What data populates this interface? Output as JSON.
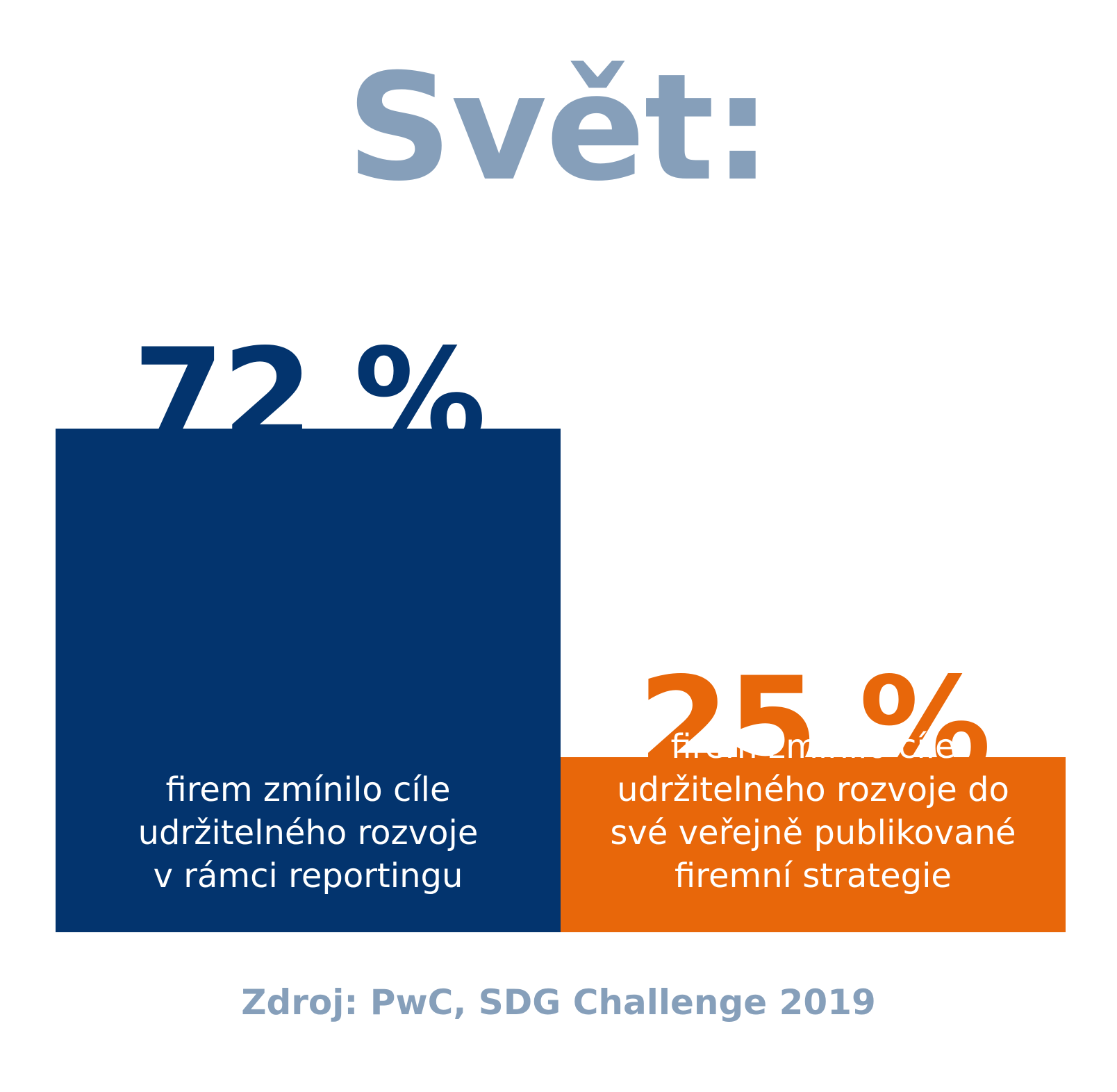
{
  "title": "Svět:",
  "source": "Zdroj: PwC, SDG Challenge 2019",
  "colors": {
    "title": "#869fba",
    "source": "#869fba",
    "navy": "#03346e",
    "orange": "#e8670a",
    "background": "#ffffff"
  },
  "chart_data": {
    "type": "bar",
    "title": "Svět:",
    "categories": [
      "firem zmínilo cíle udržitelného rozvoje v rámci reportingu",
      "firem zmínilo cíle udržitelného rozvoje do své veřejně publikované firemní strategie"
    ],
    "values": [
      72,
      25
    ],
    "value_labels": [
      "72 %",
      "25 %"
    ],
    "descriptions": [
      "firem zmínilo cíle\nudržitelného rozvoje\nv rámci reportingu",
      "firem zmínilo cíle\nudržitelného rozvoje do\nsvé veřejně publikované\nfiremní strategie"
    ],
    "bar_colors": [
      "#03346e",
      "#e8670a"
    ],
    "ylim": [
      0,
      100
    ],
    "grid": false,
    "legend": "none"
  }
}
